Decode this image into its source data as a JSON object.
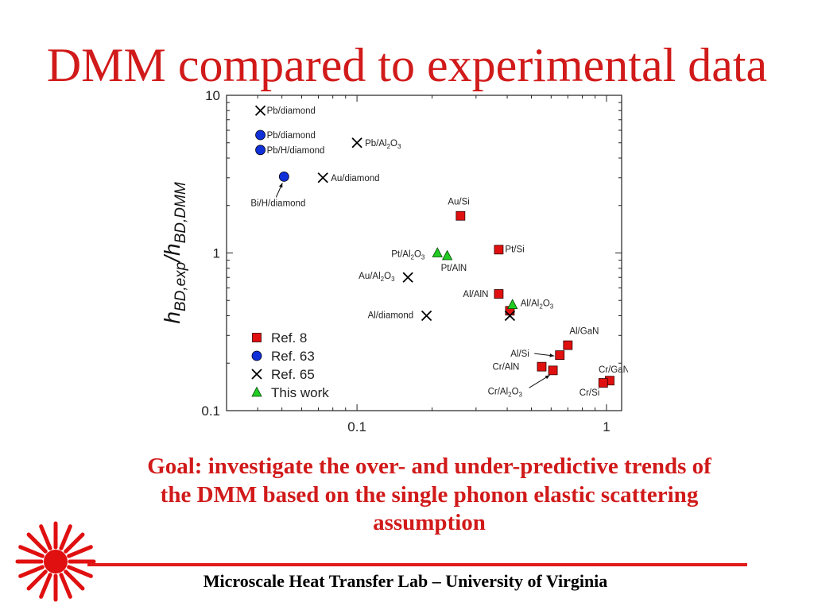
{
  "slide": {
    "title": "DMM compared to experimental data",
    "goal_text": "Goal: investigate the over- and under-predictive trends of the DMM based on the single phonon elastic scattering assumption",
    "footer": "Microscale Heat Transfer Lab – University of Virginia"
  },
  "colors": {
    "accent": "#d11a1a",
    "ref8": "#e01010",
    "ref63": "#1030d8",
    "ref65": "#000000",
    "this_work": "#22cc22"
  },
  "chart_data": {
    "type": "scatter",
    "xlabel": "",
    "ylabel": {
      "main1": "h",
      "sub1": "BD,exp",
      "slash": "/",
      "main2": "h",
      "sub2": "BD,DMM"
    },
    "x_scale": "log",
    "y_scale": "log",
    "xlim": [
      0.03,
      1.15
    ],
    "ylim": [
      0.1,
      10
    ],
    "x_ticks": [
      {
        "value": 0.1,
        "label": "0.1"
      },
      {
        "value": 1,
        "label": "1"
      }
    ],
    "y_ticks": [
      {
        "value": 0.1,
        "label": "0.1"
      },
      {
        "value": 1,
        "label": "1"
      },
      {
        "value": 10,
        "label": "10"
      }
    ],
    "legend_position": "bottom-left",
    "series": [
      {
        "name": "Ref. 8",
        "marker": "square",
        "color": "#e01010",
        "points": [
          {
            "x": 0.26,
            "y": 1.72,
            "label": "Au/Si"
          },
          {
            "x": 0.37,
            "y": 1.05,
            "label": "Pt/Si"
          },
          {
            "x": 0.37,
            "y": 0.55,
            "label": "Al/AlN"
          },
          {
            "x": 0.41,
            "y": 0.43,
            "label": ""
          },
          {
            "x": 0.7,
            "y": 0.26,
            "label": "Al/GaN"
          },
          {
            "x": 0.65,
            "y": 0.225,
            "label": "Al/Si"
          },
          {
            "x": 0.55,
            "y": 0.19,
            "label": "Cr/AlN"
          },
          {
            "x": 0.61,
            "y": 0.18,
            "label": ""
          },
          {
            "x": 1.03,
            "y": 0.155,
            "label": "Cr/GaN"
          },
          {
            "x": 0.97,
            "y": 0.15,
            "label": "Cr/Si"
          }
        ]
      },
      {
        "name": "Ref. 63",
        "marker": "circle",
        "color": "#1030d8",
        "points": [
          {
            "x": 0.041,
            "y": 5.6,
            "label": "Pb/diamond"
          },
          {
            "x": 0.041,
            "y": 4.5,
            "label": "Pb/H/diamond"
          },
          {
            "x": 0.051,
            "y": 3.05,
            "label": "Bi/H/diamond"
          }
        ]
      },
      {
        "name": "Ref. 65",
        "marker": "x",
        "color": "#000000",
        "points": [
          {
            "x": 0.041,
            "y": 8.0,
            "label": "Pb/diamond"
          },
          {
            "x": 0.1,
            "y": 5.0,
            "label": "Pb/Al2O3"
          },
          {
            "x": 0.073,
            "y": 3.0,
            "label": "Au/diamond"
          },
          {
            "x": 0.16,
            "y": 0.7,
            "label": "Au/Al2O3"
          },
          {
            "x": 0.19,
            "y": 0.4,
            "label": "Al/diamond"
          },
          {
            "x": 0.41,
            "y": 0.4,
            "label": ""
          }
        ]
      },
      {
        "name": "This work",
        "marker": "triangle",
        "color": "#22cc22",
        "points": [
          {
            "x": 0.21,
            "y": 1.0,
            "label": "Pt/Al2O3"
          },
          {
            "x": 0.23,
            "y": 0.96,
            "label": "Pt/AlN"
          },
          {
            "x": 0.42,
            "y": 0.47,
            "label": "Al/Al2O3"
          }
        ]
      }
    ]
  }
}
